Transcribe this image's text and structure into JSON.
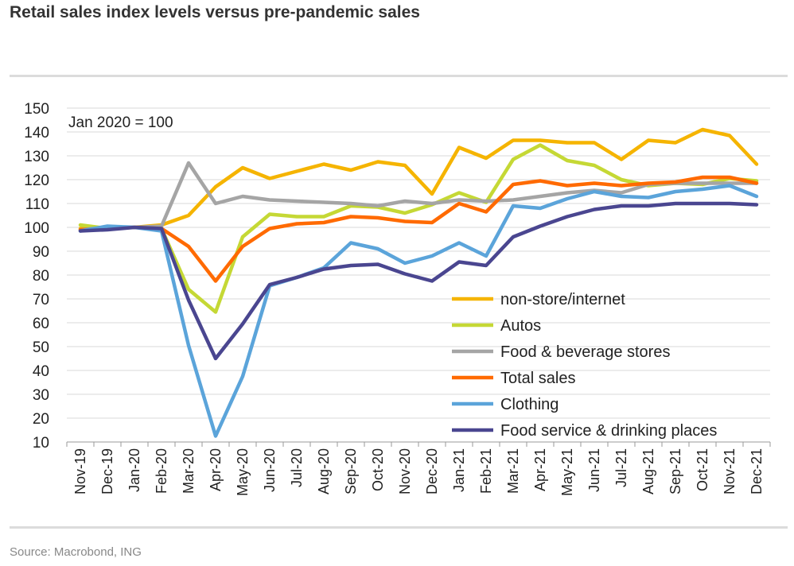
{
  "header": {
    "title": "Retail sales index levels versus pre-pandemic sales"
  },
  "footer": {
    "source": "Source: Macrobond, ING"
  },
  "chart_data": {
    "type": "line",
    "title": "Retail sales index levels versus pre-pandemic sales",
    "annotation": "Jan 2020 = 100",
    "xlabel": "",
    "ylabel": "",
    "ylim": [
      10,
      150
    ],
    "yticks": [
      10,
      20,
      30,
      40,
      50,
      60,
      70,
      80,
      90,
      100,
      110,
      120,
      130,
      140,
      150
    ],
    "grid": "horizontal",
    "legend_position": "bottom-right",
    "categories": [
      "Nov-19",
      "Dec-19",
      "Jan-20",
      "Feb-20",
      "Mar-20",
      "Apr-20",
      "May-20",
      "Jun-20",
      "Jul-20",
      "Aug-20",
      "Sep-20",
      "Oct-20",
      "Nov-20",
      "Dec-20",
      "Jan-21",
      "Feb-21",
      "Mar-21",
      "Apr-21",
      "May-21",
      "Jun-21",
      "Jul-21",
      "Aug-21",
      "Sep-21",
      "Oct-21",
      "Nov-21",
      "Dec-21"
    ],
    "series": [
      {
        "name": "non-store/internet",
        "color": "#F5B400",
        "values": [
          99.5,
          99.5,
          100,
          101,
          105,
          117,
          125,
          120.5,
          123.5,
          126.5,
          124,
          127.5,
          126,
          114,
          133.5,
          129,
          136.5,
          136.5,
          135.5,
          135.5,
          128.5,
          136.5,
          135.5,
          141,
          138.5,
          126.5
        ]
      },
      {
        "name": "Autos",
        "color": "#C5D835",
        "values": [
          101,
          99.5,
          100,
          99.5,
          74,
          64.5,
          96,
          105.5,
          104.5,
          104.5,
          109,
          108.5,
          106,
          109.5,
          114.5,
          110.5,
          128.5,
          134.5,
          128,
          126,
          120,
          117.5,
          118.5,
          118,
          120.5,
          119.5
        ]
      },
      {
        "name": "Food & beverage stores",
        "color": "#A5A5A5",
        "values": [
          99,
          100,
          100,
          100.5,
          127,
          110,
          113,
          111.5,
          111,
          110.5,
          110,
          109,
          111,
          110,
          111.5,
          111,
          111.5,
          113,
          114.5,
          115.5,
          114.5,
          118,
          118.5,
          118.5,
          118.5,
          118.5
        ]
      },
      {
        "name": "Total sales",
        "color": "#FF6A00",
        "values": [
          99,
          99.5,
          100,
          99.5,
          92,
          77.5,
          92,
          99.5,
          101.5,
          102,
          104.5,
          104,
          102.5,
          102,
          110,
          106.5,
          118,
          119.5,
          117.5,
          118.5,
          117.5,
          118.5,
          119,
          121,
          121,
          118.5
        ]
      },
      {
        "name": "Clothing",
        "color": "#5BA4DA",
        "values": [
          98.5,
          100.5,
          100,
          98.5,
          50.5,
          12.5,
          37.5,
          75.5,
          79,
          83,
          93.5,
          91,
          85,
          88,
          93.5,
          88,
          109,
          108,
          112,
          115,
          113,
          112.5,
          115,
          116,
          117.5,
          113
        ]
      },
      {
        "name": "Food service & drinking places",
        "color": "#4A4690",
        "values": [
          98.5,
          99,
          100,
          99.5,
          69.5,
          45,
          59.5,
          76,
          79,
          82.5,
          84,
          84.5,
          80.5,
          77.5,
          85.5,
          84,
          96,
          100.5,
          104.5,
          107.5,
          109,
          109,
          110,
          110,
          110,
          109.5
        ]
      }
    ]
  }
}
